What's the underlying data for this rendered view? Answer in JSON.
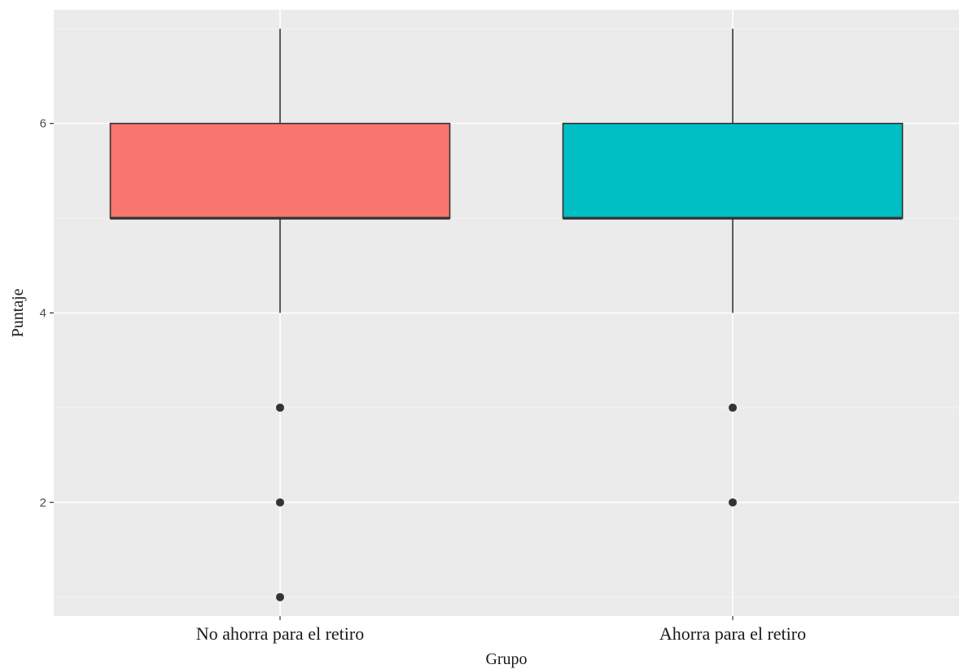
{
  "chart_data": {
    "type": "boxplot",
    "title": "",
    "xlabel": "Grupo",
    "ylabel": "Puntaje",
    "categories": [
      "No ahorra para el retiro",
      "Ahorra para el retiro"
    ],
    "ylim": [
      0.8,
      7.2
    ],
    "y_ticks": [
      2,
      4,
      6
    ],
    "grid": true,
    "legend": "none",
    "boxes": [
      {
        "category": "No ahorra para el retiro",
        "color": "#F8766D",
        "whisker_low": 4,
        "q1": 5,
        "median": 5,
        "q3": 6,
        "whisker_high": 7,
        "outliers": [
          3,
          2,
          1
        ]
      },
      {
        "category": "Ahorra para el retiro",
        "color": "#00BFC4",
        "whisker_low": 4,
        "q1": 5,
        "median": 5,
        "q3": 6,
        "whisker_high": 7,
        "outliers": [
          3,
          2
        ]
      }
    ],
    "colors": {
      "panel_bg": "#EBEBEB",
      "grid_major": "#FFFFFF",
      "box_line": "#333333"
    }
  }
}
